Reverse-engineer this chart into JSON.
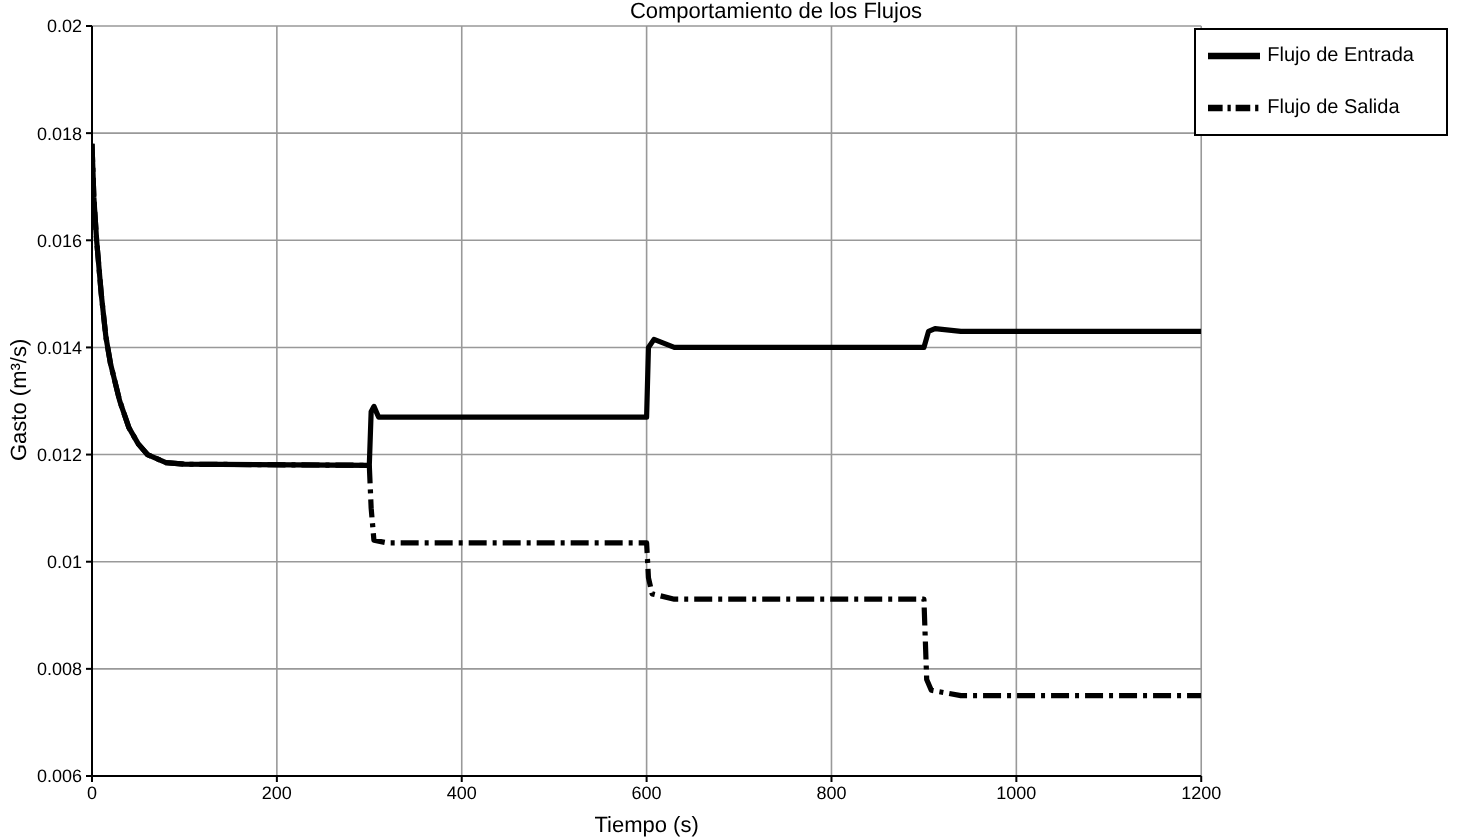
{
  "chart_data": {
    "type": "line",
    "title": "Comportamiento de los Flujos",
    "xlabel": "Tiempo (s)",
    "ylabel": "Gasto (m³/s)",
    "xlim": [
      0,
      1200
    ],
    "xticks": [
      0,
      200,
      400,
      600,
      800,
      1000,
      1200
    ],
    "ylim": [
      0.006,
      0.02
    ],
    "yticks": [
      0.006,
      0.008,
      0.01,
      0.012,
      0.014,
      0.016,
      0.018,
      0.02
    ],
    "grid": true,
    "legend": "top right",
    "marker": "none",
    "series": [
      {
        "name": "Flujo de Entrada",
        "color": "#000000",
        "line_style": "solid",
        "x": [
          0,
          2,
          5,
          10,
          15,
          20,
          30,
          40,
          50,
          60,
          80,
          100,
          300,
          302,
          305,
          310,
          600,
          602,
          608,
          630,
          900,
          905,
          912,
          940,
          1200
        ],
        "values": [
          0.0178,
          0.0168,
          0.016,
          0.015,
          0.0142,
          0.0137,
          0.013,
          0.0125,
          0.0122,
          0.012,
          0.01185,
          0.01182,
          0.0118,
          0.0128,
          0.0129,
          0.0127,
          0.0127,
          0.014,
          0.01415,
          0.014,
          0.014,
          0.0143,
          0.01435,
          0.0143,
          0.0143
        ]
      },
      {
        "name": "Flujo de Salida",
        "color": "#000000",
        "line_style": "dashed",
        "x": [
          0,
          2,
          5,
          10,
          15,
          20,
          30,
          40,
          50,
          60,
          80,
          100,
          300,
          302,
          305,
          320,
          600,
          602,
          606,
          630,
          900,
          903,
          908,
          940,
          1200
        ],
        "values": [
          0.0178,
          0.0168,
          0.016,
          0.015,
          0.0142,
          0.0137,
          0.013,
          0.0125,
          0.0122,
          0.012,
          0.01185,
          0.01182,
          0.0118,
          0.011,
          0.0104,
          0.01035,
          0.01035,
          0.0097,
          0.0094,
          0.0093,
          0.0093,
          0.0078,
          0.0076,
          0.0075,
          0.0075
        ]
      }
    ]
  }
}
